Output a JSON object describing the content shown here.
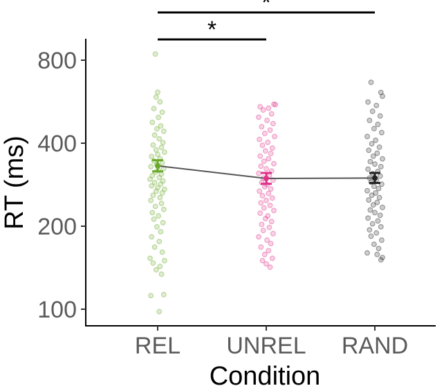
{
  "chart_data": {
    "type": "scatter",
    "title": "",
    "xlabel": "Condition",
    "ylabel": "RT (ms)",
    "y_scale": "log",
    "ylim": [
      90,
      900
    ],
    "y_ticks": [
      100,
      200,
      400,
      800
    ],
    "y_tick_labels": [
      "100",
      "200",
      "400",
      "800"
    ],
    "categories": [
      "REL",
      "UNREL",
      "RAND"
    ],
    "grid": false,
    "legend": "none",
    "colors": {
      "REL": "#6aaa2a",
      "UNREL": "#e0308a",
      "RAND": "#222222",
      "line": "#555555"
    },
    "means": [
      {
        "condition": "REL",
        "mean": 331,
        "lower": 316,
        "upper": 347
      },
      {
        "condition": "UNREL",
        "mean": 298,
        "lower": 285,
        "upper": 312
      },
      {
        "condition": "RAND",
        "mean": 299,
        "lower": 287,
        "upper": 312
      }
    ],
    "significance": [
      {
        "from": "REL",
        "to": "UNREL",
        "label": "*"
      },
      {
        "from": "REL",
        "to": "RAND",
        "label": "*"
      }
    ],
    "points": {
      "REL": [
        {
          "x": -0.03,
          "y": 842
        },
        {
          "x": 0.0,
          "y": 612
        },
        {
          "x": -0.02,
          "y": 588
        },
        {
          "x": 0.03,
          "y": 565
        },
        {
          "x": -0.05,
          "y": 534
        },
        {
          "x": 0.06,
          "y": 518
        },
        {
          "x": 0.01,
          "y": 496
        },
        {
          "x": -0.07,
          "y": 476
        },
        {
          "x": 0.04,
          "y": 462
        },
        {
          "x": -0.01,
          "y": 451
        },
        {
          "x": 0.08,
          "y": 442
        },
        {
          "x": -0.04,
          "y": 428
        },
        {
          "x": 0.02,
          "y": 415
        },
        {
          "x": 0.07,
          "y": 402
        },
        {
          "x": -0.06,
          "y": 394
        },
        {
          "x": 0.05,
          "y": 386
        },
        {
          "x": -0.02,
          "y": 378
        },
        {
          "x": 0.09,
          "y": 371
        },
        {
          "x": 0.0,
          "y": 364
        },
        {
          "x": -0.08,
          "y": 358
        },
        {
          "x": 0.03,
          "y": 351
        },
        {
          "x": -0.05,
          "y": 345
        },
        {
          "x": 0.06,
          "y": 339
        },
        {
          "x": -0.01,
          "y": 334
        },
        {
          "x": -0.09,
          "y": 329
        },
        {
          "x": 0.08,
          "y": 324
        },
        {
          "x": 0.01,
          "y": 319
        },
        {
          "x": -0.03,
          "y": 314
        },
        {
          "x": 0.05,
          "y": 309
        },
        {
          "x": -0.07,
          "y": 305
        },
        {
          "x": 0.02,
          "y": 300
        },
        {
          "x": -0.1,
          "y": 296
        },
        {
          "x": 0.07,
          "y": 292
        },
        {
          "x": -0.04,
          "y": 288
        },
        {
          "x": 0.04,
          "y": 284
        },
        {
          "x": -0.08,
          "y": 280
        },
        {
          "x": 0.0,
          "y": 276
        },
        {
          "x": 0.09,
          "y": 272
        },
        {
          "x": -0.02,
          "y": 268
        },
        {
          "x": 0.06,
          "y": 264
        },
        {
          "x": -0.06,
          "y": 259
        },
        {
          "x": 0.03,
          "y": 254
        },
        {
          "x": -0.09,
          "y": 248
        },
        {
          "x": 0.05,
          "y": 242
        },
        {
          "x": -0.03,
          "y": 236
        },
        {
          "x": 0.08,
          "y": 230
        },
        {
          "x": -0.07,
          "y": 224
        },
        {
          "x": 0.01,
          "y": 218
        },
        {
          "x": -0.05,
          "y": 212
        },
        {
          "x": 0.07,
          "y": 206
        },
        {
          "x": -0.01,
          "y": 199
        },
        {
          "x": 0.04,
          "y": 191
        },
        {
          "x": -0.08,
          "y": 183
        },
        {
          "x": 0.02,
          "y": 176
        },
        {
          "x": -0.04,
          "y": 168
        },
        {
          "x": 0.06,
          "y": 161
        },
        {
          "x": -0.1,
          "y": 153
        },
        {
          "x": 0.09,
          "y": 150
        },
        {
          "x": -0.06,
          "y": 147
        },
        {
          "x": 0.03,
          "y": 143
        },
        {
          "x": -0.02,
          "y": 139
        },
        {
          "x": 0.05,
          "y": 134
        },
        {
          "x": -0.09,
          "y": 112
        },
        {
          "x": 0.08,
          "y": 113
        },
        {
          "x": 0.02,
          "y": 98
        }
      ],
      "UNREL": [
        {
          "x": 0.1,
          "y": 554
        },
        {
          "x": 0.12,
          "y": 552
        },
        {
          "x": -0.08,
          "y": 542
        },
        {
          "x": 0.03,
          "y": 536
        },
        {
          "x": -0.04,
          "y": 528
        },
        {
          "x": 0.07,
          "y": 511
        },
        {
          "x": -0.1,
          "y": 497
        },
        {
          "x": 0.01,
          "y": 484
        },
        {
          "x": 0.09,
          "y": 471
        },
        {
          "x": -0.06,
          "y": 459
        },
        {
          "x": 0.05,
          "y": 446
        },
        {
          "x": -0.02,
          "y": 434
        },
        {
          "x": 0.11,
          "y": 423
        },
        {
          "x": -0.09,
          "y": 413
        },
        {
          "x": 0.02,
          "y": 403
        },
        {
          "x": -0.05,
          "y": 393
        },
        {
          "x": 0.08,
          "y": 384
        },
        {
          "x": -0.01,
          "y": 375
        },
        {
          "x": 0.06,
          "y": 367
        },
        {
          "x": -0.08,
          "y": 359
        },
        {
          "x": 0.03,
          "y": 351
        },
        {
          "x": -0.03,
          "y": 344
        },
        {
          "x": 0.1,
          "y": 337
        },
        {
          "x": -0.07,
          "y": 330
        },
        {
          "x": 0.0,
          "y": 323
        },
        {
          "x": 0.07,
          "y": 317
        },
        {
          "x": -0.1,
          "y": 311
        },
        {
          "x": 0.04,
          "y": 305
        },
        {
          "x": -0.04,
          "y": 299
        },
        {
          "x": 0.09,
          "y": 294
        },
        {
          "x": -0.06,
          "y": 288
        },
        {
          "x": 0.01,
          "y": 283
        },
        {
          "x": -0.02,
          "y": 278
        },
        {
          "x": 0.06,
          "y": 273
        },
        {
          "x": -0.09,
          "y": 268
        },
        {
          "x": 0.03,
          "y": 263
        },
        {
          "x": -0.05,
          "y": 258
        },
        {
          "x": 0.08,
          "y": 253
        },
        {
          "x": 0.0,
          "y": 248
        },
        {
          "x": -0.07,
          "y": 243
        },
        {
          "x": 0.05,
          "y": 238
        },
        {
          "x": -0.03,
          "y": 233
        },
        {
          "x": 0.1,
          "y": 228
        },
        {
          "x": -0.08,
          "y": 223
        },
        {
          "x": 0.02,
          "y": 218
        },
        {
          "x": -0.01,
          "y": 213
        },
        {
          "x": 0.07,
          "y": 208
        },
        {
          "x": -0.06,
          "y": 203
        },
        {
          "x": 0.04,
          "y": 198
        },
        {
          "x": -0.04,
          "y": 193
        },
        {
          "x": 0.09,
          "y": 188
        },
        {
          "x": -0.1,
          "y": 183
        },
        {
          "x": 0.01,
          "y": 178
        },
        {
          "x": 0.06,
          "y": 173
        },
        {
          "x": -0.07,
          "y": 168
        },
        {
          "x": 0.03,
          "y": 163
        },
        {
          "x": -0.02,
          "y": 158
        },
        {
          "x": 0.08,
          "y": 153
        },
        {
          "x": -0.05,
          "y": 150
        },
        {
          "x": 0.0,
          "y": 146
        },
        {
          "x": 0.05,
          "y": 142
        }
      ],
      "RAND": [
        {
          "x": -0.05,
          "y": 665
        },
        {
          "x": 0.08,
          "y": 611
        },
        {
          "x": 0.1,
          "y": 592
        },
        {
          "x": -0.09,
          "y": 564
        },
        {
          "x": 0.02,
          "y": 548
        },
        {
          "x": -0.03,
          "y": 522
        },
        {
          "x": 0.07,
          "y": 502
        },
        {
          "x": -0.07,
          "y": 484
        },
        {
          "x": 0.04,
          "y": 468
        },
        {
          "x": -0.01,
          "y": 452
        },
        {
          "x": 0.09,
          "y": 437
        },
        {
          "x": -0.1,
          "y": 423
        },
        {
          "x": 0.01,
          "y": 410
        },
        {
          "x": -0.04,
          "y": 398
        },
        {
          "x": 0.06,
          "y": 387
        },
        {
          "x": -0.08,
          "y": 377
        },
        {
          "x": 0.03,
          "y": 368
        },
        {
          "x": -0.02,
          "y": 359
        },
        {
          "x": 0.1,
          "y": 351
        },
        {
          "x": -0.06,
          "y": 343
        },
        {
          "x": 0.0,
          "y": 336
        },
        {
          "x": 0.08,
          "y": 329
        },
        {
          "x": -0.09,
          "y": 322
        },
        {
          "x": 0.04,
          "y": 316
        },
        {
          "x": -0.03,
          "y": 310
        },
        {
          "x": 0.07,
          "y": 304
        },
        {
          "x": -0.07,
          "y": 299
        },
        {
          "x": 0.02,
          "y": 294
        },
        {
          "x": -0.05,
          "y": 289
        },
        {
          "x": 0.09,
          "y": 284
        },
        {
          "x": -0.01,
          "y": 279
        },
        {
          "x": 0.05,
          "y": 274
        },
        {
          "x": -0.1,
          "y": 269
        },
        {
          "x": 0.01,
          "y": 264
        },
        {
          "x": -0.04,
          "y": 259
        },
        {
          "x": 0.06,
          "y": 254
        },
        {
          "x": -0.08,
          "y": 249
        },
        {
          "x": 0.03,
          "y": 244
        },
        {
          "x": -0.02,
          "y": 239
        },
        {
          "x": 0.1,
          "y": 234
        },
        {
          "x": -0.06,
          "y": 229
        },
        {
          "x": 0.0,
          "y": 224
        },
        {
          "x": 0.07,
          "y": 219
        },
        {
          "x": -0.09,
          "y": 214
        },
        {
          "x": 0.04,
          "y": 209
        },
        {
          "x": -0.03,
          "y": 204
        },
        {
          "x": 0.08,
          "y": 199
        },
        {
          "x": -0.07,
          "y": 194
        },
        {
          "x": 0.02,
          "y": 189
        },
        {
          "x": -0.05,
          "y": 184
        },
        {
          "x": 0.09,
          "y": 178
        },
        {
          "x": -0.01,
          "y": 172
        },
        {
          "x": 0.05,
          "y": 166
        },
        {
          "x": -0.1,
          "y": 160
        },
        {
          "x": 0.1,
          "y": 154
        },
        {
          "x": 0.08,
          "y": 151
        },
        {
          "x": 0.03,
          "y": 158
        }
      ]
    }
  }
}
